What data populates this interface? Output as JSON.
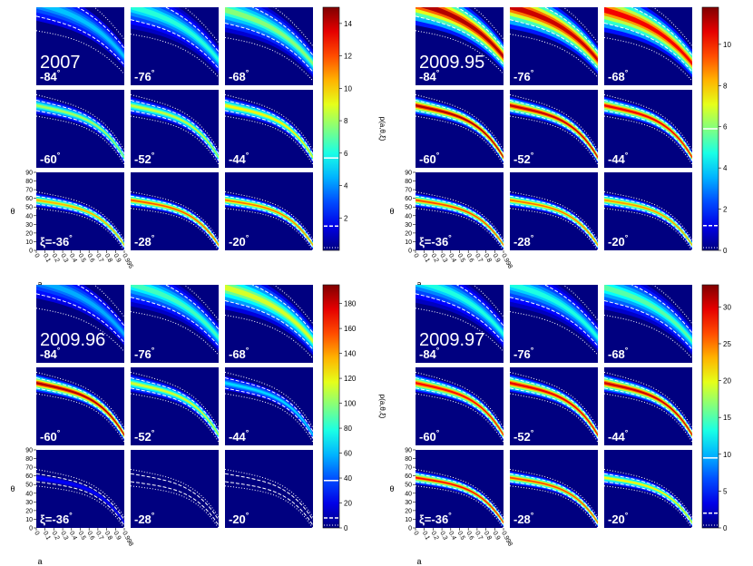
{
  "chart_data": {
    "type": "heatmap",
    "description_units": "probability density p(a, theta, xi) over spin a and inclination theta for 9 values of xi",
    "panel_xi_labels": [
      "-84°",
      "-76°",
      "-68°",
      "-60°",
      "-52°",
      "-44°",
      "ξ=-36°",
      "-28°",
      "-20°"
    ],
    "x_axis": {
      "label": "a",
      "range": [
        0,
        1
      ],
      "ticks": [
        0,
        0.1,
        0.2,
        0.3,
        0.4,
        0.5,
        0.6,
        0.7,
        0.8,
        0.9
      ],
      "tick_labels": [
        "0",
        "0.1",
        "0.2",
        "0.3",
        "0.4",
        "0.5",
        "0.6",
        "0.7",
        "0.8",
        "0.9"
      ]
    },
    "y_axis": {
      "label": "θ",
      "range": [
        0,
        90
      ],
      "ticks": [
        0,
        10,
        20,
        30,
        40,
        50,
        60,
        70,
        80,
        90
      ],
      "tick_labels": [
        "0",
        "10",
        "20",
        "30",
        "40",
        "50",
        "60",
        "70",
        "80",
        "90"
      ]
    },
    "colormap": "jet",
    "colorbar_label": "p(a,θ,ξ)",
    "figures": [
      {
        "epoch": "2007",
        "last_x_tick": "0.995",
        "colorbar_max": 15,
        "colorbar_ticks": [
          2,
          4,
          6,
          8,
          10,
          12,
          14
        ],
        "solid_level": 5.7,
        "dashed_level": 1.5,
        "panel_peaks": [
          5,
          6.5,
          8,
          8.5,
          9,
          10,
          11,
          12.5,
          12
        ]
      },
      {
        "epoch": "2009.95",
        "last_x_tick": "0.998",
        "colorbar_max": 11.8,
        "colorbar_ticks": [
          0,
          2,
          4,
          6,
          8,
          10
        ],
        "solid_level": 5.9,
        "dashed_level": 1.2,
        "panel_peaks": [
          11.8,
          11.5,
          11,
          11.8,
          11.5,
          11,
          10,
          9.5,
          9
        ]
      },
      {
        "epoch": "2009.96",
        "last_x_tick": "0.998",
        "colorbar_max": 195,
        "colorbar_ticks": [
          0,
          20,
          40,
          60,
          80,
          100,
          120,
          140,
          160,
          180
        ],
        "solid_level": 38,
        "dashed_level": 8,
        "panel_peaks": [
          60,
          90,
          120,
          195,
          120,
          70,
          25,
          10,
          6
        ]
      },
      {
        "epoch": "2009.97",
        "last_x_tick": "0.998",
        "colorbar_max": 33,
        "colorbar_ticks": [
          0,
          5,
          10,
          15,
          20,
          25,
          30
        ],
        "solid_level": 9.5,
        "dashed_level": 2,
        "panel_peaks": [
          14,
          14,
          16,
          30,
          31,
          32,
          30,
          28,
          22
        ]
      }
    ]
  }
}
